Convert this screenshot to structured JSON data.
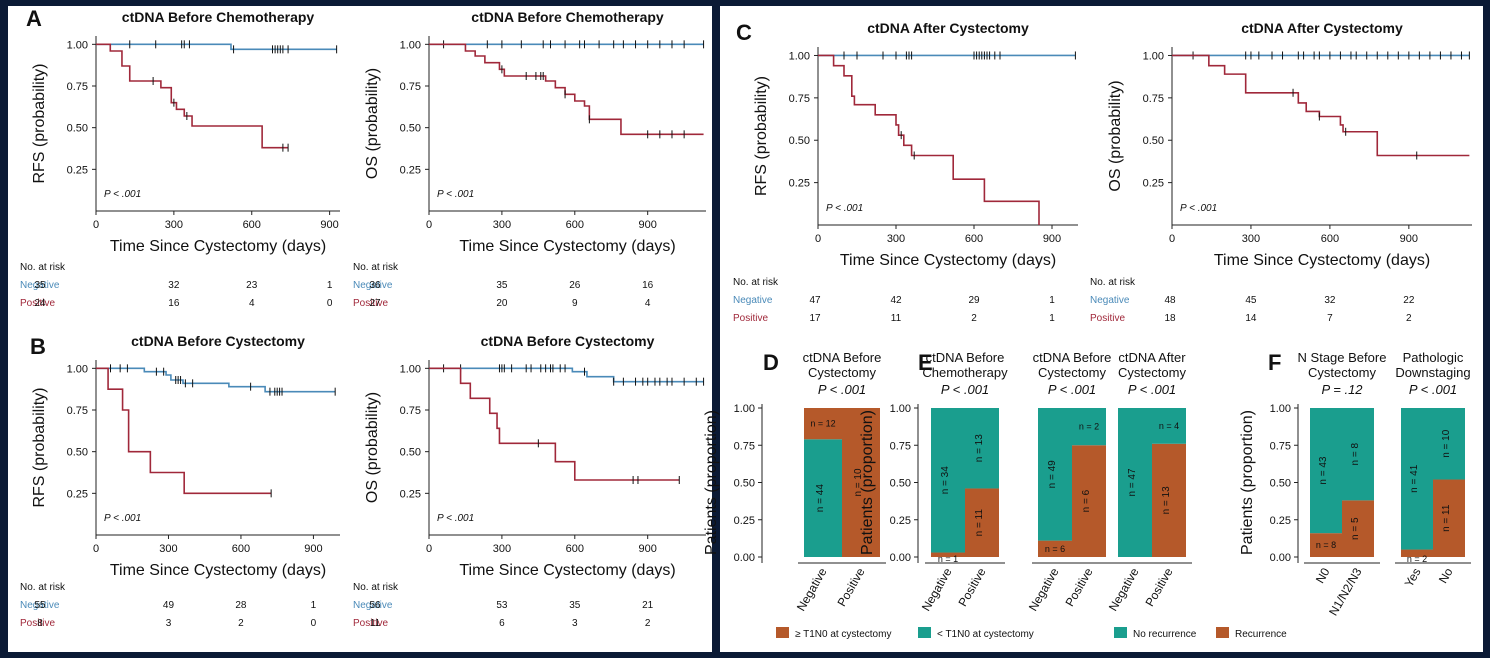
{
  "chart_data": [
    {
      "type": "step",
      "panel": "A",
      "title": "ctDNA Before Chemotherapy",
      "ylabel": "RFS (probability)",
      "xlabel": "Time Since Cystectomy (days)",
      "annotation": "P < .001",
      "xlim": [
        0,
        940
      ],
      "ylim": [
        0,
        1.05
      ],
      "xticks": [
        0,
        300,
        600,
        900
      ],
      "yticks": [
        {
          "value": 0.25,
          "label": "0.25"
        },
        {
          "value": 0.5,
          "label": "0.50"
        },
        {
          "value": 0.75,
          "label": "0.75"
        },
        {
          "value": 1,
          "label": "1.00"
        }
      ],
      "risk_title": "No. at risk",
      "series": [
        {
          "name": "Negative",
          "color": "#4a8ab8",
          "x": [
            0,
            520,
            927
          ],
          "values": [
            1,
            0.97,
            0.97
          ],
          "censor_x": [
            130,
            230,
            330,
            340,
            360,
            530,
            680,
            690,
            700,
            710,
            720,
            740,
            927
          ],
          "at_risk": [
            35,
            32,
            23,
            1
          ]
        },
        {
          "name": "Positive",
          "color": "#a0283a",
          "x": [
            0,
            55,
            100,
            130,
            250,
            290,
            310,
            340,
            370,
            640,
            740
          ],
          "values": [
            1,
            0.96,
            0.87,
            0.78,
            0.74,
            0.65,
            0.61,
            0.57,
            0.51,
            0.38,
            0.38
          ],
          "censor_x": [
            220,
            300,
            350,
            720,
            740
          ],
          "at_risk": [
            24,
            16,
            4,
            0
          ]
        }
      ]
    },
    {
      "type": "step",
      "title": "ctDNA Before Chemotherapy",
      "ylabel": "OS (probability)",
      "xlabel": "Time Since Cystectomy (days)",
      "annotation": "P < .001",
      "xlim": [
        0,
        1140
      ],
      "ylim": [
        0,
        1.05
      ],
      "xticks": [
        0,
        300,
        600,
        900
      ],
      "yticks": [
        {
          "value": 0.25,
          "label": "0.25"
        },
        {
          "value": 0.5,
          "label": "0.50"
        },
        {
          "value": 0.75,
          "label": "0.75"
        },
        {
          "value": 1,
          "label": "1.00"
        }
      ],
      "risk_title": "No. at risk",
      "series": [
        {
          "name": "Negative",
          "color": "#4a8ab8",
          "x": [
            0,
            1130
          ],
          "values": [
            1,
            1
          ],
          "censor_x": [
            60,
            240,
            300,
            380,
            470,
            500,
            560,
            620,
            640,
            700,
            760,
            800,
            850,
            900,
            950,
            1000,
            1050,
            1130
          ],
          "at_risk": [
            36,
            35,
            26,
            16
          ]
        },
        {
          "name": "Positive",
          "color": "#a0283a",
          "x": [
            0,
            150,
            190,
            230,
            290,
            310,
            480,
            520,
            560,
            600,
            640,
            660,
            790,
            1130
          ],
          "values": [
            1,
            0.96,
            0.93,
            0.89,
            0.85,
            0.81,
            0.78,
            0.74,
            0.7,
            0.66,
            0.63,
            0.55,
            0.46,
            0.46
          ],
          "censor_x": [
            300,
            400,
            440,
            460,
            470,
            560,
            660,
            900,
            950,
            1000,
            1050
          ],
          "at_risk": [
            27,
            20,
            9,
            4
          ]
        }
      ]
    },
    {
      "type": "step",
      "panel": "B",
      "title": "ctDNA Before Cystectomy",
      "ylabel": "RFS (probability)",
      "xlabel": "Time Since Cystectomy (days)",
      "annotation": "P < .001",
      "xlim": [
        0,
        1010
      ],
      "ylim": [
        0,
        1.05
      ],
      "xticks": [
        0,
        300,
        600,
        900
      ],
      "yticks": [
        {
          "value": 0.25,
          "label": "0.25"
        },
        {
          "value": 0.5,
          "label": "0.50"
        },
        {
          "value": 0.75,
          "label": "0.75"
        },
        {
          "value": 1,
          "label": "1.00"
        }
      ],
      "risk_title": "No. at risk",
      "series": [
        {
          "name": "Negative",
          "color": "#4a8ab8",
          "x": [
            0,
            200,
            290,
            310,
            360,
            550,
            700,
            990
          ],
          "values": [
            1,
            0.98,
            0.96,
            0.93,
            0.91,
            0.89,
            0.86,
            0.86
          ],
          "censor_x": [
            60,
            100,
            130,
            250,
            280,
            330,
            340,
            350,
            370,
            400,
            640,
            720,
            740,
            750,
            760,
            770,
            990
          ],
          "at_risk": [
            55,
            49,
            28,
            1
          ]
        },
        {
          "name": "Positive",
          "color": "#a0283a",
          "x": [
            0,
            50,
            110,
            135,
            225,
            365,
            725
          ],
          "values": [
            1,
            0.875,
            0.75,
            0.5,
            0.375,
            0.25,
            0.25
          ],
          "censor_x": [
            725
          ],
          "at_risk": [
            8,
            3,
            2,
            0
          ]
        }
      ]
    },
    {
      "type": "step",
      "title": "ctDNA Before Cystectomy",
      "ylabel": "OS (probability)",
      "xlabel": "Time Since Cystectomy (days)",
      "annotation": "P < .001",
      "xlim": [
        0,
        1140
      ],
      "ylim": [
        0,
        1.05
      ],
      "xticks": [
        0,
        300,
        600,
        900
      ],
      "yticks": [
        {
          "value": 0.25,
          "label": "0.25"
        },
        {
          "value": 0.5,
          "label": "0.50"
        },
        {
          "value": 0.75,
          "label": "0.75"
        },
        {
          "value": 1,
          "label": "1.00"
        }
      ],
      "risk_title": "No. at risk",
      "series": [
        {
          "name": "Negative",
          "color": "#4a8ab8",
          "x": [
            0,
            590,
            650,
            760,
            1130
          ],
          "values": [
            1,
            0.98,
            0.95,
            0.92,
            0.92
          ],
          "censor_x": [
            60,
            130,
            290,
            300,
            310,
            340,
            400,
            420,
            460,
            480,
            500,
            510,
            540,
            560,
            640,
            760,
            800,
            850,
            880,
            900,
            930,
            950,
            980,
            1000,
            1050,
            1100,
            1130
          ],
          "at_risk": [
            56,
            53,
            35,
            21
          ]
        },
        {
          "name": "Positive",
          "color": "#a0283a",
          "x": [
            0,
            130,
            170,
            250,
            280,
            290,
            520,
            600,
            1030
          ],
          "values": [
            1,
            0.91,
            0.82,
            0.73,
            0.64,
            0.55,
            0.44,
            0.33,
            0.33
          ],
          "censor_x": [
            450,
            840,
            860,
            1030
          ],
          "at_risk": [
            11,
            6,
            3,
            2
          ]
        }
      ]
    },
    {
      "type": "step",
      "panel": "C",
      "title": "ctDNA After Cystectomy",
      "ylabel": "RFS (probability)",
      "xlabel": "Time Since Cystectomy (days)",
      "annotation": "P < .001",
      "xlim": [
        0,
        1000
      ],
      "ylim": [
        0,
        1.05
      ],
      "xticks": [
        0,
        300,
        600,
        900
      ],
      "yticks": [
        {
          "value": 0.25,
          "label": "0.25"
        },
        {
          "value": 0.5,
          "label": "0.50"
        },
        {
          "value": 0.75,
          "label": "0.75"
        },
        {
          "value": 1,
          "label": "1.00"
        }
      ],
      "risk_title": "No. at risk",
      "series": [
        {
          "name": "Negative",
          "color": "#4a8ab8",
          "x": [
            0,
            990
          ],
          "values": [
            1,
            1
          ],
          "censor_x": [
            100,
            150,
            250,
            300,
            340,
            350,
            360,
            600,
            610,
            620,
            630,
            640,
            650,
            660,
            680,
            700,
            990
          ],
          "at_risk": [
            47,
            42,
            29,
            1
          ]
        },
        {
          "name": "Positive",
          "color": "#a0283a",
          "x": [
            0,
            60,
            100,
            130,
            140,
            220,
            300,
            310,
            330,
            360,
            520,
            640,
            850
          ],
          "values": [
            1,
            0.94,
            0.88,
            0.76,
            0.71,
            0.65,
            0.59,
            0.53,
            0.47,
            0.41,
            0.27,
            0.14,
            0
          ],
          "censor_x": [
            320,
            370
          ],
          "at_risk": [
            17,
            11,
            2,
            1
          ]
        }
      ]
    },
    {
      "type": "step",
      "title": "ctDNA After Cystectomy",
      "ylabel": "OS (probability)",
      "xlabel": "Time Since Cystectomy (days)",
      "annotation": "P < .001",
      "xlim": [
        0,
        1140
      ],
      "ylim": [
        0,
        1.05
      ],
      "xticks": [
        0,
        300,
        600,
        900
      ],
      "yticks": [
        {
          "value": 0.25,
          "label": "0.25"
        },
        {
          "value": 0.5,
          "label": "0.50"
        },
        {
          "value": 0.75,
          "label": "0.75"
        },
        {
          "value": 1,
          "label": "1.00"
        }
      ],
      "risk_title": "No. at risk",
      "series": [
        {
          "name": "Negative",
          "color": "#4a8ab8",
          "x": [
            0,
            1130
          ],
          "values": [
            1,
            1
          ],
          "censor_x": [
            80,
            280,
            300,
            330,
            380,
            420,
            480,
            500,
            540,
            560,
            600,
            640,
            680,
            700,
            740,
            780,
            820,
            860,
            900,
            940,
            980,
            1020,
            1060,
            1100,
            1130
          ],
          "at_risk": [
            48,
            45,
            32,
            22
          ]
        },
        {
          "name": "Positive",
          "color": "#a0283a",
          "x": [
            0,
            140,
            200,
            280,
            480,
            510,
            560,
            640,
            650,
            780,
            1130
          ],
          "values": [
            1,
            0.94,
            0.89,
            0.78,
            0.72,
            0.67,
            0.64,
            0.59,
            0.55,
            0.41,
            0.41
          ],
          "censor_x": [
            460,
            560,
            660,
            930
          ],
          "at_risk": [
            18,
            14,
            7,
            2
          ]
        }
      ]
    },
    {
      "type": "stacked_bar",
      "panel": "D",
      "ylabel": "Patients (proportion)",
      "ylim": [
        0,
        1
      ],
      "yticks": [
        {
          "value": 0,
          "label": "0.00"
        },
        {
          "value": 0.25,
          "label": "0.25"
        },
        {
          "value": 0.5,
          "label": "0.50"
        },
        {
          "value": 0.75,
          "label": "0.75"
        },
        {
          "value": 1,
          "label": "1.00"
        }
      ],
      "series": [
        {
          "name": "≥ T1N0 at cystectomy",
          "color": "#b5592a"
        },
        {
          "name": "< T1N0 at cystectomy",
          "color": "#1a9e8e"
        }
      ],
      "groups": [
        {
          "title": [
            "ctDNA Before",
            "Cystectomy"
          ],
          "p_value": "P < .001",
          "categories": [
            "Negative",
            "Positive"
          ],
          "values": [
            [
              0.21,
              1
            ],
            [
              0.79,
              0
            ]
          ],
          "count_labels": [
            [
              "n = 12",
              "n = 10"
            ],
            [
              "n = 44",
              null
            ]
          ]
        }
      ]
    },
    {
      "type": "stacked_bar",
      "panel": "E",
      "ylabel": "Patients (proportion)",
      "ylim": [
        0,
        1
      ],
      "yticks": [
        {
          "value": 0,
          "label": "0.00"
        },
        {
          "value": 0.25,
          "label": "0.25"
        },
        {
          "value": 0.5,
          "label": "0.50"
        },
        {
          "value": 0.75,
          "label": "0.75"
        },
        {
          "value": 1,
          "label": "1.00"
        }
      ],
      "series": [
        {
          "name": "No recurrence",
          "color": "#1a9e8e"
        },
        {
          "name": "Recurrence",
          "color": "#b5592a"
        }
      ],
      "groups": [
        {
          "title": [
            "ctDNA Before",
            "Chemotherapy"
          ],
          "p_value": "P < .001",
          "categories": [
            "Negative",
            "Positive"
          ],
          "values": [
            [
              0.97,
              0.54
            ],
            [
              0.03,
              0.46
            ]
          ],
          "count_labels": [
            [
              "n = 34",
              "n = 13"
            ],
            [
              "n = 1",
              "n = 11"
            ]
          ]
        },
        {
          "title": [
            "ctDNA Before",
            "Cystectomy"
          ],
          "p_value": "P < .001",
          "categories": [
            "Negative",
            "Positive"
          ],
          "values": [
            [
              0.89,
              0.25
            ],
            [
              0.11,
              0.75
            ]
          ],
          "count_labels": [
            [
              "n = 49",
              "n = 2"
            ],
            [
              "n = 6",
              "n = 6"
            ]
          ]
        },
        {
          "title": [
            "ctDNA After",
            "Cystectomy"
          ],
          "p_value": "P < .001",
          "categories": [
            "Negative",
            "Positive"
          ],
          "values": [
            [
              1,
              0.24
            ],
            [
              0,
              0.76
            ]
          ],
          "count_labels": [
            [
              "n = 47",
              "n = 4"
            ],
            [
              null,
              "n = 13"
            ]
          ]
        }
      ]
    },
    {
      "type": "stacked_bar",
      "panel": "F",
      "ylabel": "Patients (proportion)",
      "ylim": [
        0,
        1
      ],
      "yticks": [
        {
          "value": 0,
          "label": "0.00"
        },
        {
          "value": 0.25,
          "label": "0.25"
        },
        {
          "value": 0.5,
          "label": "0.50"
        },
        {
          "value": 0.75,
          "label": "0.75"
        },
        {
          "value": 1,
          "label": "1.00"
        }
      ],
      "series": [
        {
          "color": "#1a9e8e"
        },
        {
          "color": "#b5592a"
        }
      ],
      "groups": [
        {
          "title": [
            "N Stage Before",
            "Cystectomy"
          ],
          "p_value": "P = .12",
          "categories": [
            "N0",
            "N1/N2/N3"
          ],
          "values": [
            [
              0.84,
              0.62
            ],
            [
              0.16,
              0.38
            ]
          ],
          "count_labels": [
            [
              "n = 43",
              "n = 8"
            ],
            [
              "n = 8",
              "n = 5"
            ]
          ]
        },
        {
          "title": [
            "Pathologic",
            "Downstaging"
          ],
          "p_value": "P < .001",
          "categories": [
            "Yes",
            "No"
          ],
          "values": [
            [
              0.95,
              0.48
            ],
            [
              0.05,
              0.52
            ]
          ],
          "count_labels": [
            [
              "n = 41",
              "n = 10"
            ],
            [
              "n = 2",
              "n = 11"
            ]
          ]
        }
      ]
    }
  ]
}
